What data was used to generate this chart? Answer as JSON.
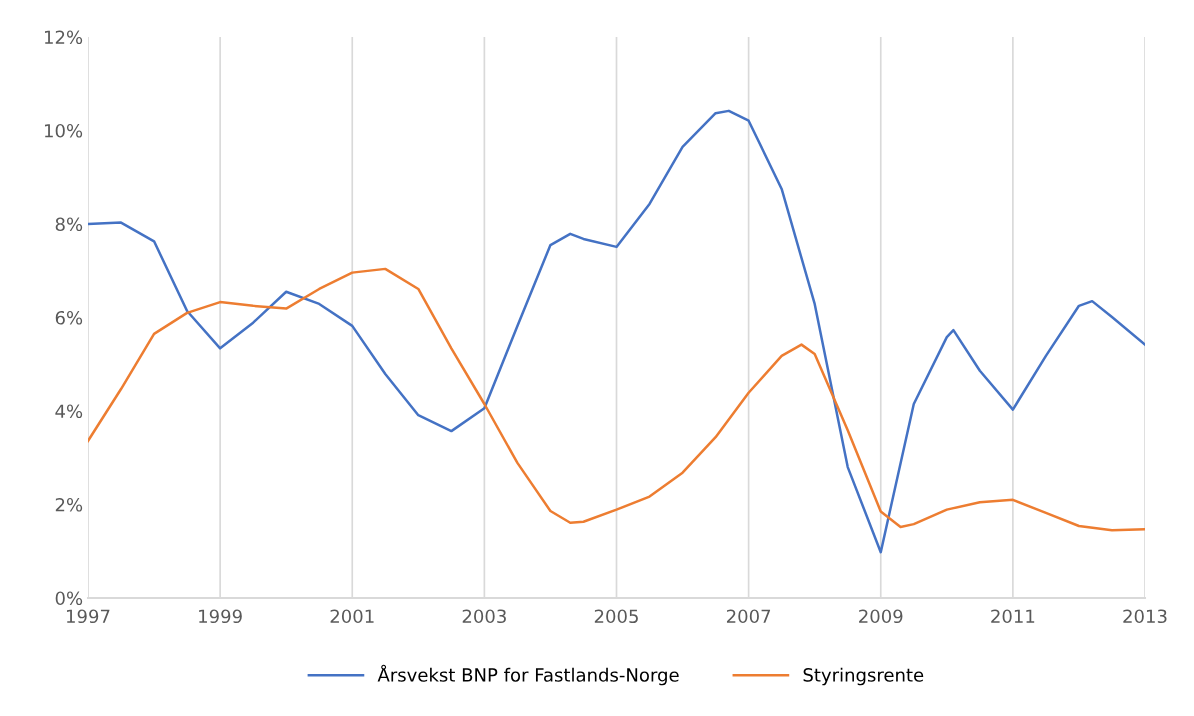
{
  "chart_data": {
    "type": "line",
    "series": [
      {
        "name": "Årsvekst BNP for Fastlands-Norge",
        "color": "#4472c4",
        "x": [
          1997,
          1997.5,
          1998,
          1998.5,
          1999,
          1999.5,
          2000,
          2000.5,
          2001,
          2001.5,
          2002,
          2002.5,
          2003,
          2003.5,
          2004,
          2004.3,
          2004.5,
          2005,
          2005.5,
          2006,
          2006.5,
          2006.7,
          2007,
          2007.5,
          2008,
          2008.5,
          2009,
          2009.5,
          2010,
          2010.1,
          2010.5,
          2011,
          2011.5,
          2012,
          2012.2,
          2012.5,
          2013
        ],
        "values": [
          8.0,
          8.03,
          7.63,
          6.14,
          5.34,
          5.89,
          6.55,
          6.29,
          5.82,
          4.79,
          3.91,
          3.57,
          4.06,
          5.82,
          7.55,
          7.79,
          7.68,
          7.51,
          8.43,
          9.65,
          10.37,
          10.42,
          10.21,
          8.75,
          6.29,
          2.8,
          0.98,
          4.15,
          5.58,
          5.73,
          4.86,
          4.03,
          5.18,
          6.25,
          6.35,
          6.01,
          5.42
        ]
      },
      {
        "name": "Styringsrente",
        "color": "#ed7d31",
        "x": [
          1997,
          1997.5,
          1998,
          1998.5,
          1999,
          1999.5,
          2000,
          2000.5,
          2001,
          2001.5,
          2002,
          2002.5,
          2003,
          2003.5,
          2004,
          2004.3,
          2004.5,
          2005,
          2005.5,
          2006,
          2006.5,
          2007,
          2007.5,
          2007.8,
          2008,
          2008.5,
          2009,
          2009.3,
          2009.5,
          2010,
          2010.5,
          2011,
          2011.5,
          2012,
          2012.5,
          2013
        ],
        "values": [
          3.36,
          4.47,
          5.65,
          6.1,
          6.33,
          6.25,
          6.19,
          6.61,
          6.96,
          7.04,
          6.61,
          5.34,
          4.15,
          2.89,
          1.86,
          1.61,
          1.63,
          1.89,
          2.17,
          2.68,
          3.44,
          4.39,
          5.18,
          5.42,
          5.22,
          3.59,
          1.85,
          1.52,
          1.58,
          1.89,
          2.05,
          2.1,
          1.82,
          1.54,
          1.45,
          1.47
        ]
      }
    ],
    "xlim": [
      1997,
      2013
    ],
    "xticks": [
      1997,
      1999,
      2001,
      2003,
      2005,
      2007,
      2009,
      2011,
      2013
    ],
    "ylim": [
      0,
      12
    ],
    "yticks": [
      {
        "value": 0,
        "label": "0%"
      },
      {
        "value": 2,
        "label": "2%"
      },
      {
        "value": 4,
        "label": "4%"
      },
      {
        "value": 6,
        "label": "6%"
      },
      {
        "value": 8,
        "label": "8%"
      },
      {
        "value": 10,
        "label": "10%"
      },
      {
        "value": 12,
        "label": "12%"
      }
    ],
    "grid": "x",
    "legend": "bottom",
    "marker": "none",
    "line_style": "solid"
  }
}
